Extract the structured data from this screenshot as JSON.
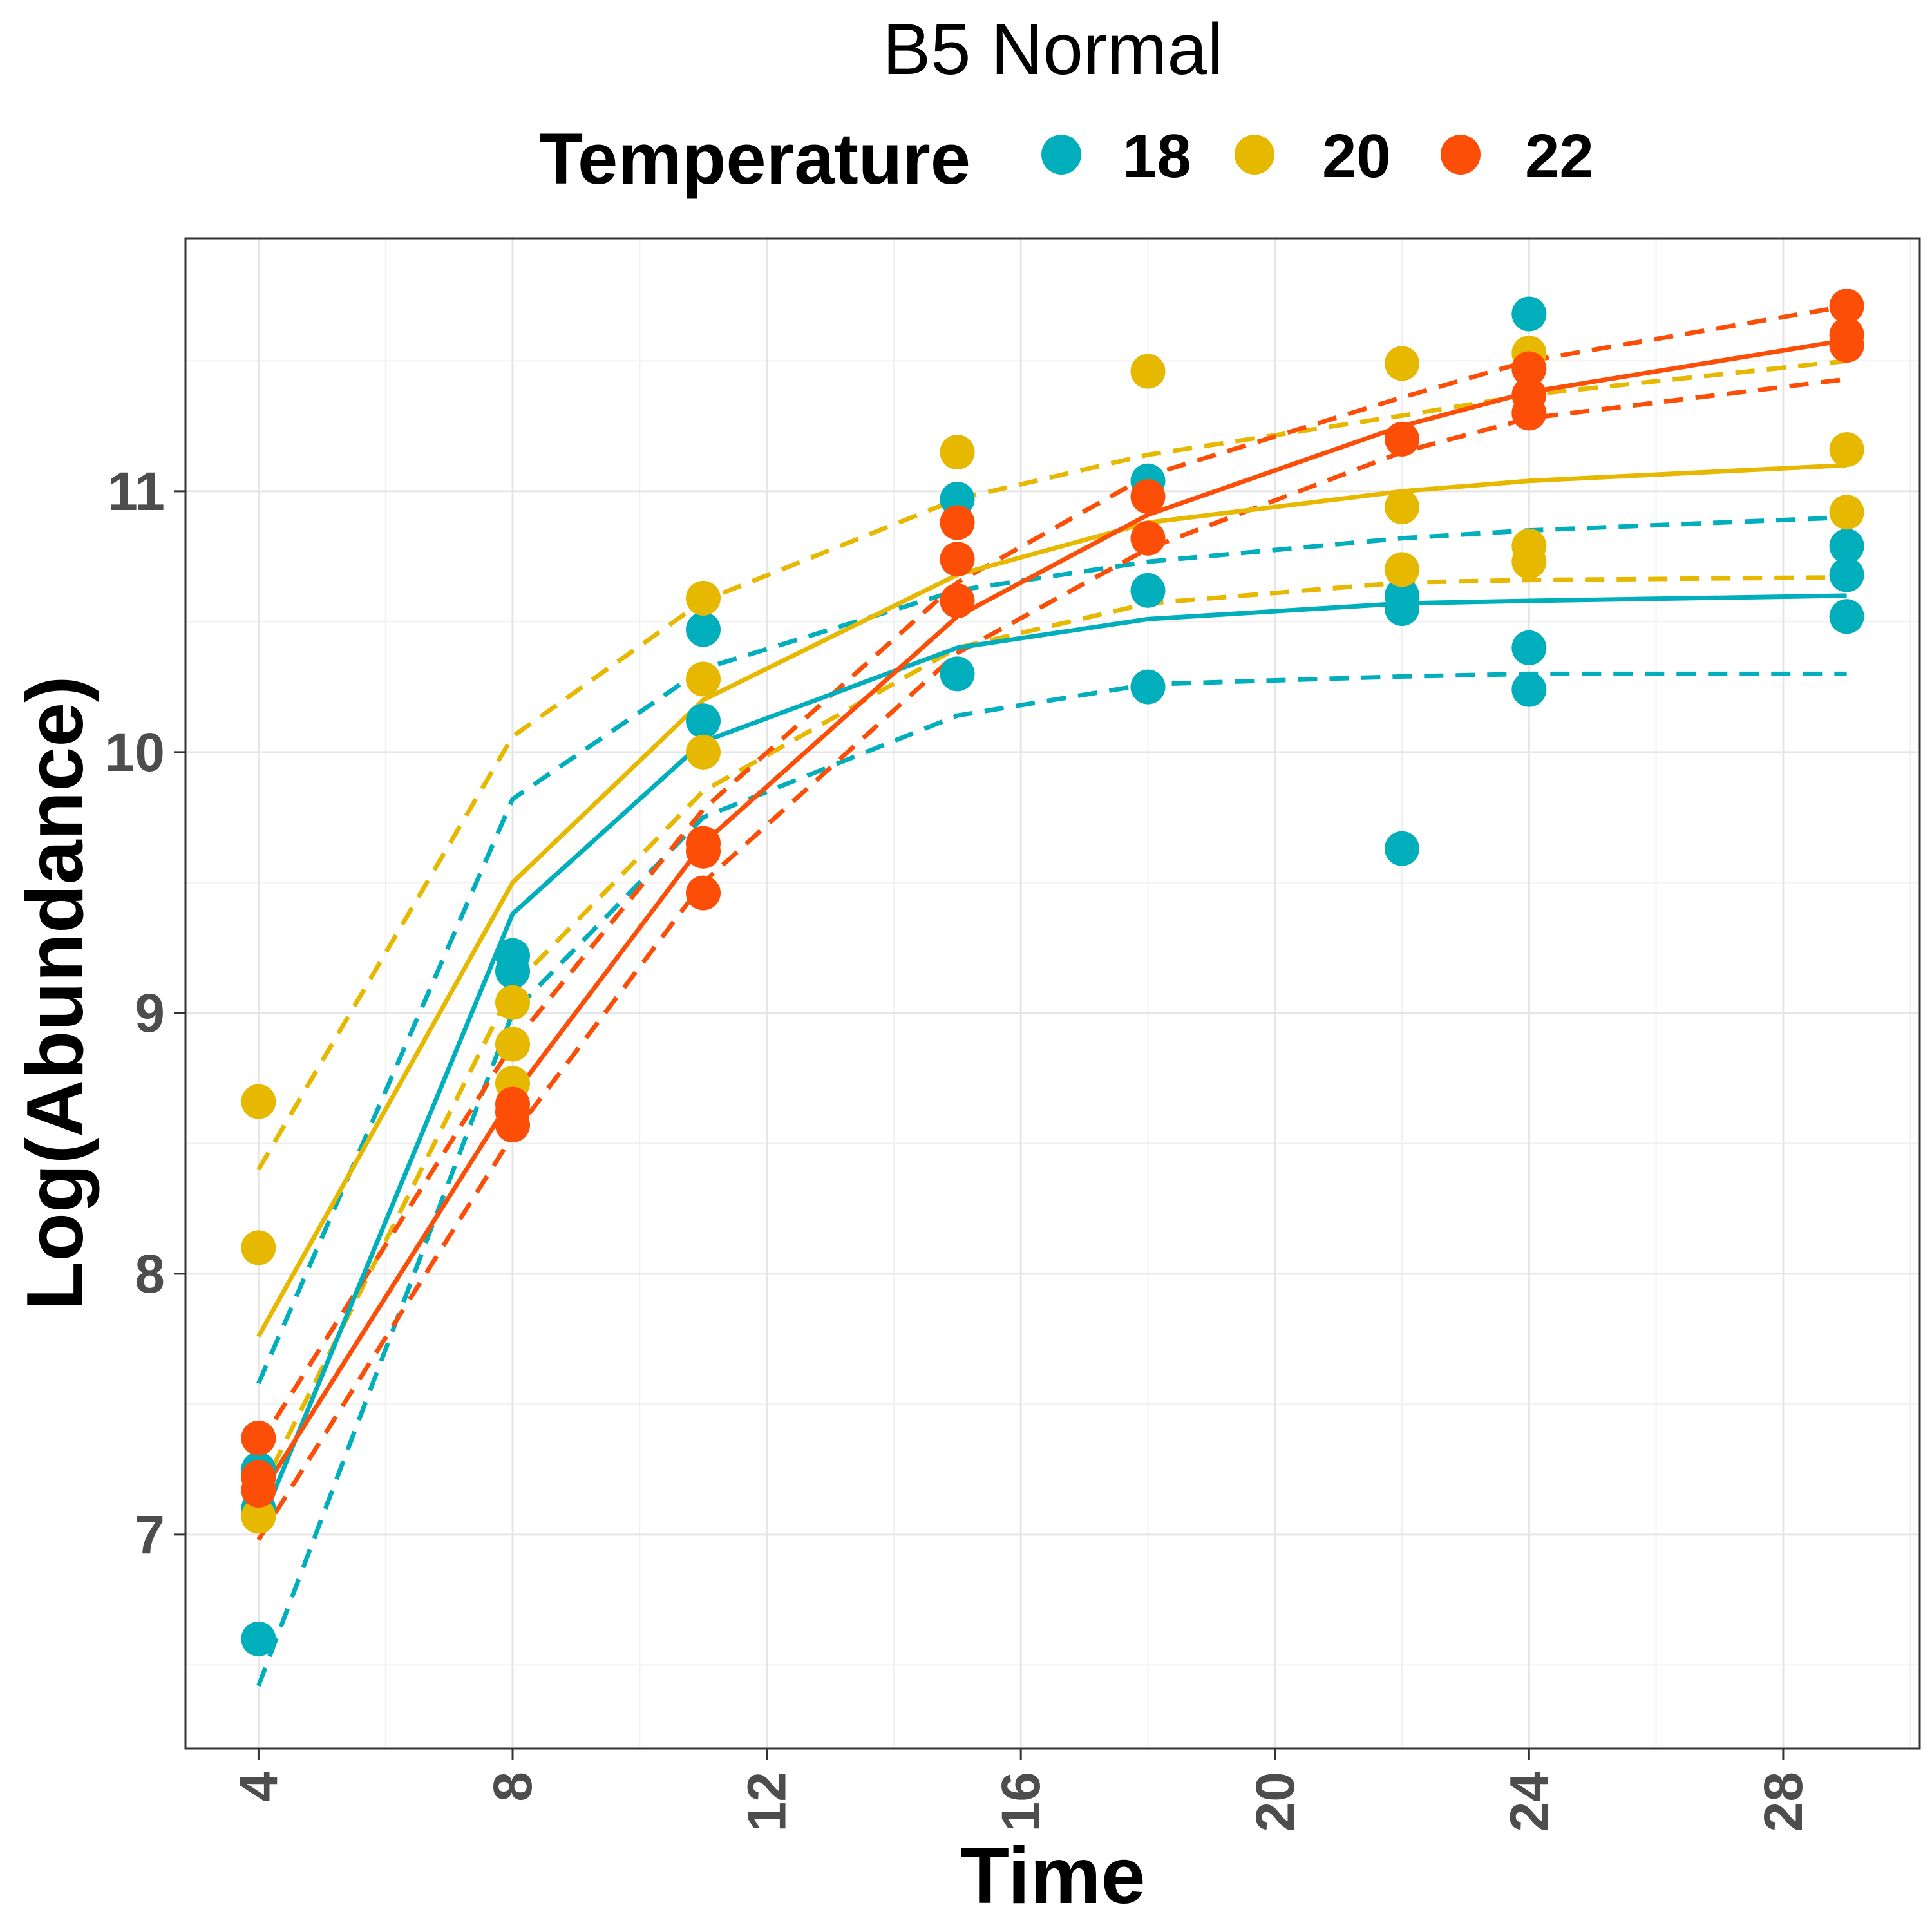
{
  "chart_data": {
    "type": "scatter",
    "title": "B5 Normal",
    "xlabel": "Time",
    "ylabel": "Log(Abundance)",
    "xlim": [
      2.85,
      30.15
    ],
    "ylim": [
      6.18,
      11.97
    ],
    "x_ticks": [
      4,
      8,
      12,
      16,
      20,
      24,
      28
    ],
    "y_ticks": [
      7,
      8,
      9,
      10,
      11
    ],
    "grid": true,
    "legend": {
      "title": "Temperature",
      "position": "top"
    },
    "series": [
      {
        "name": "18",
        "color": "#00AFBB",
        "points": [
          [
            4,
            6.6
          ],
          [
            4,
            7.1
          ],
          [
            4,
            7.25
          ],
          [
            8,
            9.16
          ],
          [
            8,
            9.22
          ],
          [
            11,
            10.12
          ],
          [
            11,
            10.47
          ],
          [
            15,
            10.3
          ],
          [
            15,
            10.97
          ],
          [
            18,
            10.25
          ],
          [
            18,
            10.62
          ],
          [
            18,
            11.04
          ],
          [
            22,
            9.63
          ],
          [
            22,
            10.55
          ],
          [
            22,
            10.6
          ],
          [
            24,
            10.24
          ],
          [
            24,
            10.4
          ],
          [
            24,
            11.68
          ],
          [
            29,
            10.52
          ],
          [
            29,
            10.68
          ],
          [
            29,
            10.79
          ]
        ],
        "fit": [
          [
            4,
            7.02
          ],
          [
            8,
            9.38
          ],
          [
            11,
            10.04
          ],
          [
            15,
            10.4
          ],
          [
            18,
            10.51
          ],
          [
            22,
            10.57
          ],
          [
            24,
            10.58
          ],
          [
            29,
            10.6
          ]
        ],
        "ci_upper": [
          [
            4,
            7.58
          ],
          [
            8,
            9.82
          ],
          [
            11,
            10.32
          ],
          [
            15,
            10.62
          ],
          [
            18,
            10.73
          ],
          [
            22,
            10.82
          ],
          [
            24,
            10.85
          ],
          [
            29,
            10.9
          ]
        ],
        "ci_lower": [
          [
            4,
            6.42
          ],
          [
            8,
            9.0
          ],
          [
            11,
            9.75
          ],
          [
            15,
            10.14
          ],
          [
            18,
            10.26
          ],
          [
            22,
            10.29
          ],
          [
            24,
            10.3
          ],
          [
            29,
            10.3
          ]
        ]
      },
      {
        "name": "20",
        "color": "#E7B800",
        "points": [
          [
            4,
            7.07
          ],
          [
            4,
            8.1
          ],
          [
            4,
            8.66
          ],
          [
            8,
            8.73
          ],
          [
            8,
            8.88
          ],
          [
            8,
            9.04
          ],
          [
            11,
            10.0
          ],
          [
            11,
            10.28
          ],
          [
            11,
            10.59
          ],
          [
            15,
            11.15
          ],
          [
            18,
            11.46
          ],
          [
            22,
            10.7
          ],
          [
            22,
            10.94
          ],
          [
            22,
            11.49
          ],
          [
            24,
            10.73
          ],
          [
            24,
            10.79
          ],
          [
            24,
            11.53
          ],
          [
            29,
            10.92
          ],
          [
            29,
            11.16
          ]
        ],
        "fit": [
          [
            4,
            7.76
          ],
          [
            8,
            9.5
          ],
          [
            11,
            10.2
          ],
          [
            15,
            10.68
          ],
          [
            18,
            10.88
          ],
          [
            22,
            11.0
          ],
          [
            24,
            11.04
          ],
          [
            29,
            11.1
          ]
        ],
        "ci_upper": [
          [
            4,
            8.4
          ],
          [
            8,
            10.06
          ],
          [
            11,
            10.58
          ],
          [
            15,
            10.97
          ],
          [
            18,
            11.14
          ],
          [
            22,
            11.29
          ],
          [
            24,
            11.37
          ],
          [
            29,
            11.5
          ]
        ],
        "ci_lower": [
          [
            4,
            7.15
          ],
          [
            8,
            9.1
          ],
          [
            11,
            9.85
          ],
          [
            15,
            10.4
          ],
          [
            18,
            10.57
          ],
          [
            22,
            10.65
          ],
          [
            24,
            10.66
          ],
          [
            29,
            10.67
          ]
        ]
      },
      {
        "name": "22",
        "color": "#FC4E07",
        "points": [
          [
            4,
            7.17
          ],
          [
            4,
            7.22
          ],
          [
            4,
            7.37
          ],
          [
            8,
            8.57
          ],
          [
            8,
            8.62
          ],
          [
            8,
            8.65
          ],
          [
            11,
            9.46
          ],
          [
            11,
            9.62
          ],
          [
            11,
            9.65
          ],
          [
            15,
            10.58
          ],
          [
            15,
            10.74
          ],
          [
            15,
            10.88
          ],
          [
            18,
            10.82
          ],
          [
            18,
            10.98
          ],
          [
            22,
            11.2
          ],
          [
            24,
            11.3
          ],
          [
            24,
            11.37
          ],
          [
            24,
            11.47
          ],
          [
            29,
            11.56
          ],
          [
            29,
            11.6
          ],
          [
            29,
            11.71
          ]
        ],
        "fit": [
          [
            4,
            7.14
          ],
          [
            8,
            8.68
          ],
          [
            11,
            9.65
          ],
          [
            15,
            10.52
          ],
          [
            18,
            10.91
          ],
          [
            22,
            11.25
          ],
          [
            24,
            11.38
          ],
          [
            29,
            11.58
          ]
        ],
        "ci_upper": [
          [
            4,
            7.34
          ],
          [
            8,
            8.88
          ],
          [
            11,
            9.78
          ],
          [
            15,
            10.65
          ],
          [
            18,
            11.06
          ],
          [
            22,
            11.36
          ],
          [
            24,
            11.5
          ],
          [
            29,
            11.71
          ]
        ],
        "ci_lower": [
          [
            4,
            6.98
          ],
          [
            8,
            8.53
          ],
          [
            11,
            9.5
          ],
          [
            15,
            10.38
          ],
          [
            18,
            10.78
          ],
          [
            22,
            11.15
          ],
          [
            24,
            11.28
          ],
          [
            29,
            11.43
          ]
        ]
      }
    ]
  }
}
